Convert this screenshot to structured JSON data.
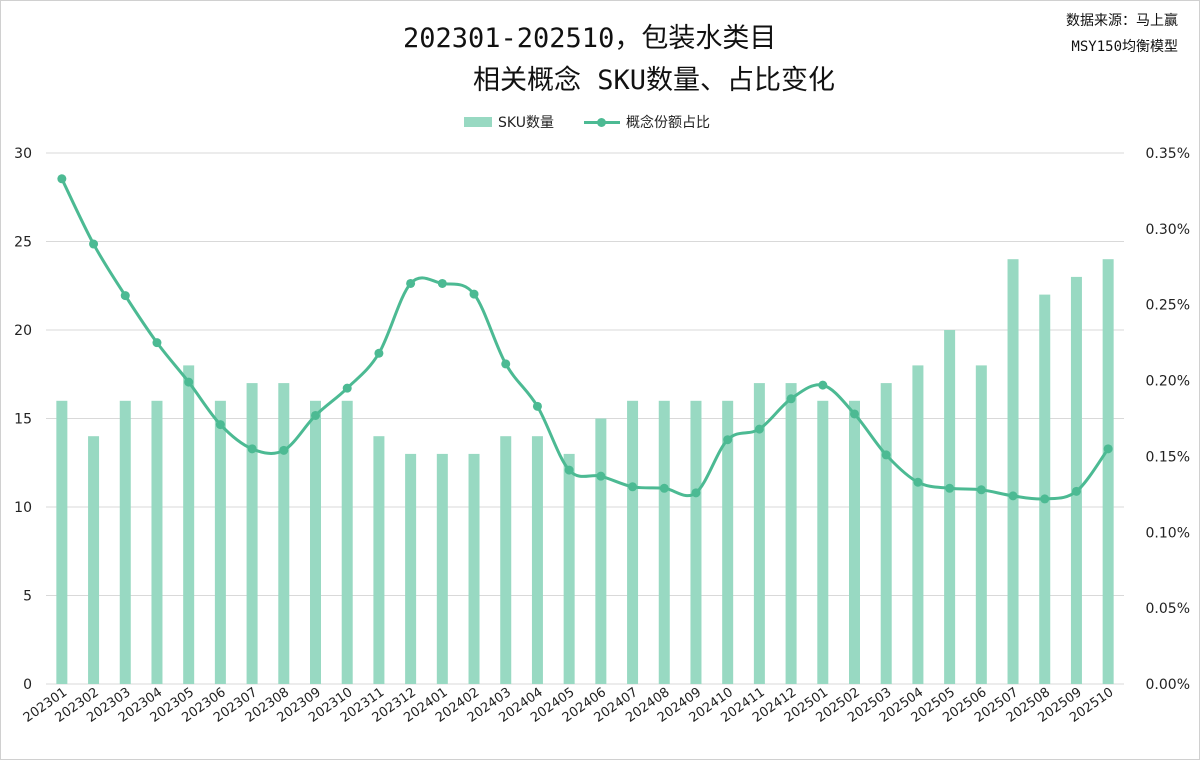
{
  "title": {
    "line1": "202301-202510，包装水类目",
    "line2": "相关概念 SKU数量、占比变化"
  },
  "source": {
    "line1": "数据来源：马上赢",
    "line2": "MSY150均衡模型"
  },
  "legend": {
    "bar_label": "SKU数量",
    "line_label": "概念份额占比"
  },
  "colors": {
    "bar": "#98d9c2",
    "line": "#4cba93",
    "grid": "#d9d9d9"
  },
  "chart_data": {
    "type": "bar+line",
    "categories": [
      "202301",
      "202302",
      "202303",
      "202304",
      "202305",
      "202306",
      "202307",
      "202308",
      "202309",
      "202310",
      "202311",
      "202312",
      "202401",
      "202402",
      "202403",
      "202404",
      "202405",
      "202406",
      "202407",
      "202408",
      "202409",
      "202410",
      "202411",
      "202412",
      "202501",
      "202502",
      "202503",
      "202504",
      "202505",
      "202506",
      "202507",
      "202508",
      "202509",
      "202510"
    ],
    "series": [
      {
        "name": "SKU数量",
        "type": "bar",
        "axis": "left",
        "values": [
          16,
          14,
          16,
          16,
          18,
          16,
          17,
          17,
          16,
          16,
          14,
          13,
          13,
          13,
          14,
          14,
          13,
          15,
          16,
          16,
          16,
          16,
          17,
          17,
          16,
          16,
          17,
          18,
          20,
          18,
          24,
          22,
          23,
          24
        ]
      },
      {
        "name": "概念份额占比",
        "type": "line",
        "axis": "right",
        "unit": "%",
        "values": [
          0.333,
          0.29,
          0.256,
          0.225,
          0.199,
          0.171,
          0.155,
          0.154,
          0.177,
          0.195,
          0.218,
          0.264,
          0.264,
          0.257,
          0.211,
          0.183,
          0.141,
          0.137,
          0.13,
          0.129,
          0.126,
          0.161,
          0.168,
          0.188,
          0.197,
          0.178,
          0.151,
          0.133,
          0.129,
          0.128,
          0.124,
          0.122,
          0.127,
          0.155
        ]
      }
    ],
    "y_left": {
      "ylim": [
        0,
        30
      ],
      "ticks": [
        "0",
        "5",
        "10",
        "15",
        "20",
        "25",
        "30"
      ]
    },
    "y_right": {
      "ylim": [
        0,
        0.35
      ],
      "ticks": [
        "0.00%",
        "0.05%",
        "0.10%",
        "0.15%",
        "0.20%",
        "0.25%",
        "0.30%",
        "0.35%"
      ]
    },
    "grid": true,
    "legend_position": "top-center"
  }
}
